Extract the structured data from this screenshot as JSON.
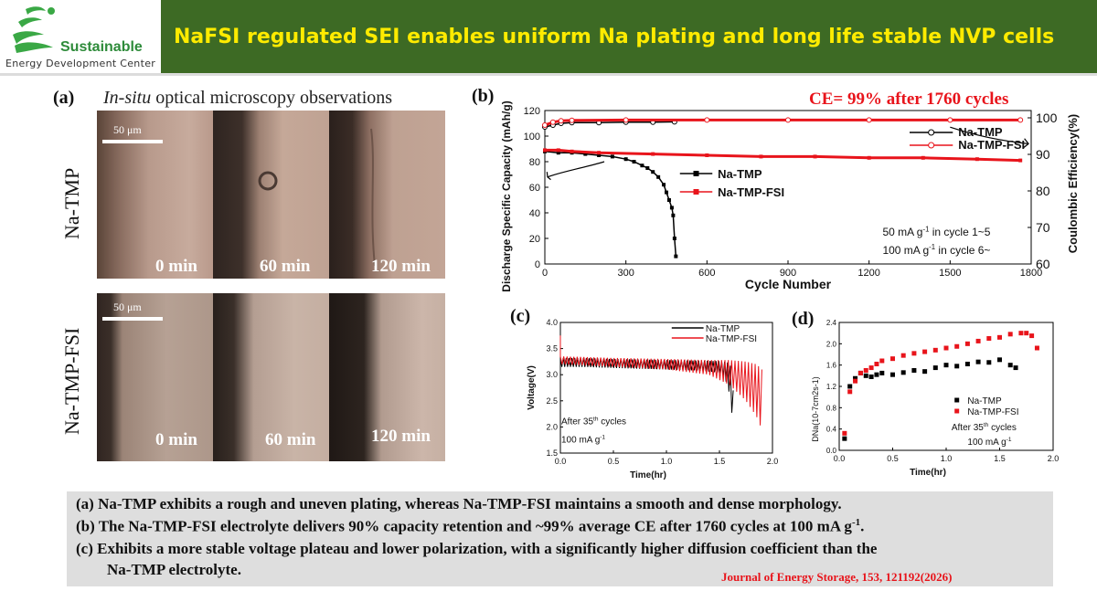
{
  "header": {
    "logo_name": "Sustainable",
    "logo_sub": "Energy Development Center",
    "title": "NaFSI regulated SEI enables uniform Na plating and long life stable NVP cells",
    "bar_color": "#3d6a24",
    "title_color": "#ffeb00"
  },
  "panel_a": {
    "label": "(a)",
    "title_italic": "In-situ",
    "title_rest": " optical microscopy observations",
    "scale_label": "50 μm",
    "rows": [
      {
        "name": "Na-TMP",
        "times": [
          "0 min",
          "60 min",
          "120 min"
        ]
      },
      {
        "name": "Na-TMP-FSI",
        "times": [
          "0 min",
          "60 min",
          "120 min"
        ]
      }
    ]
  },
  "panel_b": {
    "label": "(b)",
    "ce_note": "CE= 99% after 1760 cycles"
  },
  "panel_c": {
    "label": "(c)"
  },
  "panel_d": {
    "label": "(d)"
  },
  "summary": {
    "line1": "(a)  Na-TMP exhibits a rough and uneven plating, whereas Na-TMP-FSI maintains a smooth and dense morphology.",
    "line2_pre": "(b)  The Na-TMP-FSI electrolyte delivers 90% capacity retention and ~99% average CE after 1760 cycles at 100 mA g",
    "line2_sup": "-1",
    "line2_post": ".",
    "line3": "(c)  Exhibits a more stable voltage plateau and lower polarization, with a significantly higher diffusion coefficient than the",
    "line4": "Na-TMP electrolyte.",
    "reference": "Journal of Energy Storage, 153, 121192(2026)"
  },
  "chart_data": [
    {
      "type": "line",
      "panel": "b",
      "xlabel": "Cycle Number",
      "ylabel": "Discharge Specific Capacity (mAh/g)",
      "y2label": "Coulombic Efficiency(%)",
      "xlim": [
        0,
        1800
      ],
      "ylim": [
        0,
        120
      ],
      "y2lim": [
        60,
        102
      ],
      "xticks": [
        0,
        300,
        600,
        900,
        1200,
        1500,
        1800
      ],
      "yticks": [
        0,
        20,
        40,
        60,
        80,
        100,
        120
      ],
      "y2ticks": [
        60,
        70,
        80,
        90,
        100
      ],
      "annotation_lines": [
        "50 mA g-1 in cycle 1~5",
        "100 mA g-1 in cycle 6~"
      ],
      "legend_capacity": [
        "Na-TMP",
        "Na-TMP-FSI"
      ],
      "legend_ce": [
        "Na-TMP",
        "Na-TMP-FSI"
      ],
      "colors": {
        "Na-TMP": "#000000",
        "Na-TMP-FSI": "#e8141b"
      },
      "series": [
        {
          "name": "Na-TMP",
          "metric": "capacity",
          "x": [
            0,
            50,
            100,
            150,
            200,
            250,
            300,
            330,
            360,
            380,
            400,
            420,
            440,
            450,
            460,
            470,
            475,
            480,
            485
          ],
          "y": [
            88,
            87,
            87,
            86,
            85,
            84,
            82,
            80,
            77,
            75,
            72,
            68,
            62,
            56,
            50,
            44,
            38,
            20,
            6
          ]
        },
        {
          "name": "Na-TMP-FSI",
          "metric": "capacity",
          "x": [
            0,
            50,
            100,
            200,
            400,
            600,
            800,
            1000,
            1200,
            1400,
            1600,
            1760
          ],
          "y": [
            89,
            89,
            88,
            87,
            86,
            85,
            84,
            84,
            83,
            83,
            82,
            81
          ]
        },
        {
          "name": "Na-TMP",
          "metric": "ce",
          "x": [
            0,
            30,
            60,
            100,
            200,
            300,
            400,
            480
          ],
          "y": [
            97.5,
            98.0,
            98.5,
            98.7,
            98.7,
            98.8,
            98.8,
            98.9
          ]
        },
        {
          "name": "Na-TMP-FSI",
          "metric": "ce",
          "x": [
            0,
            30,
            60,
            100,
            300,
            600,
            900,
            1200,
            1500,
            1760
          ],
          "y": [
            98.0,
            98.8,
            99.2,
            99.3,
            99.4,
            99.4,
            99.4,
            99.4,
            99.4,
            99.4
          ]
        }
      ]
    },
    {
      "type": "line",
      "panel": "c",
      "xlabel": "Time(hr)",
      "ylabel": "Voltage(V)",
      "xlim": [
        0,
        2.0
      ],
      "ylim": [
        1.5,
        4.0
      ],
      "xticks": [
        0.0,
        0.5,
        1.0,
        1.5,
        2.0
      ],
      "yticks": [
        1.5,
        2.0,
        2.5,
        3.0,
        3.5,
        4.0
      ],
      "annotation_lines": [
        "After 35th cycles",
        "100 mA g-1"
      ],
      "series": [
        {
          "name": "Na-TMP",
          "color": "#000000",
          "envelope_x": [
            0,
            0.2,
            0.5,
            1.0,
            1.3,
            1.5,
            1.55,
            1.6,
            1.63
          ],
          "upper": [
            3.32,
            3.32,
            3.3,
            3.28,
            3.27,
            3.26,
            3.25,
            3.22,
            2.7
          ],
          "lower": [
            3.15,
            3.15,
            3.13,
            3.1,
            3.08,
            3.04,
            2.95,
            2.6,
            2.0
          ]
        },
        {
          "name": "Na-TMP-FSI",
          "color": "#e8141b",
          "envelope_x": [
            0,
            0.2,
            0.5,
            1.0,
            1.4,
            1.6,
            1.75,
            1.85,
            1.9
          ],
          "upper": [
            3.35,
            3.34,
            3.32,
            3.3,
            3.28,
            3.28,
            3.25,
            3.2,
            3.1
          ],
          "lower": [
            3.2,
            3.18,
            3.15,
            3.1,
            3.0,
            2.8,
            2.5,
            2.2,
            1.95
          ]
        }
      ]
    },
    {
      "type": "scatter",
      "panel": "d",
      "xlabel": "Time(hr)",
      "ylabel": "DNa(10-7cm2s-1)",
      "xlim": [
        0,
        2.0
      ],
      "ylim": [
        0,
        2.4
      ],
      "xticks": [
        0.0,
        0.5,
        1.0,
        1.5,
        2.0
      ],
      "yticks": [
        0.0,
        0.4,
        0.8,
        1.2,
        1.6,
        2.0,
        2.4
      ],
      "annotation_lines": [
        "After 35th cycles",
        "100 mA g-1"
      ],
      "series": [
        {
          "name": "Na-TMP",
          "color": "#000000",
          "x": [
            0.05,
            0.1,
            0.15,
            0.2,
            0.25,
            0.3,
            0.35,
            0.4,
            0.5,
            0.6,
            0.7,
            0.8,
            0.9,
            1.0,
            1.1,
            1.2,
            1.3,
            1.4,
            1.5,
            1.6,
            1.65
          ],
          "y": [
            0.22,
            1.2,
            1.35,
            1.45,
            1.4,
            1.38,
            1.42,
            1.45,
            1.42,
            1.46,
            1.5,
            1.48,
            1.55,
            1.6,
            1.58,
            1.62,
            1.66,
            1.65,
            1.7,
            1.6,
            1.55
          ]
        },
        {
          "name": "Na-TMP-FSI",
          "color": "#e8141b",
          "x": [
            0.05,
            0.1,
            0.15,
            0.2,
            0.25,
            0.3,
            0.35,
            0.4,
            0.5,
            0.6,
            0.7,
            0.8,
            0.9,
            1.0,
            1.1,
            1.2,
            1.3,
            1.4,
            1.5,
            1.6,
            1.7,
            1.75,
            1.8,
            1.85
          ],
          "y": [
            0.32,
            1.1,
            1.3,
            1.45,
            1.5,
            1.55,
            1.62,
            1.68,
            1.72,
            1.78,
            1.82,
            1.85,
            1.88,
            1.92,
            1.95,
            2.0,
            2.05,
            2.1,
            2.12,
            2.18,
            2.2,
            2.2,
            2.15,
            1.92
          ]
        }
      ],
      "legend": [
        "Na-TMP",
        "Na-TMP-FSI"
      ]
    }
  ]
}
